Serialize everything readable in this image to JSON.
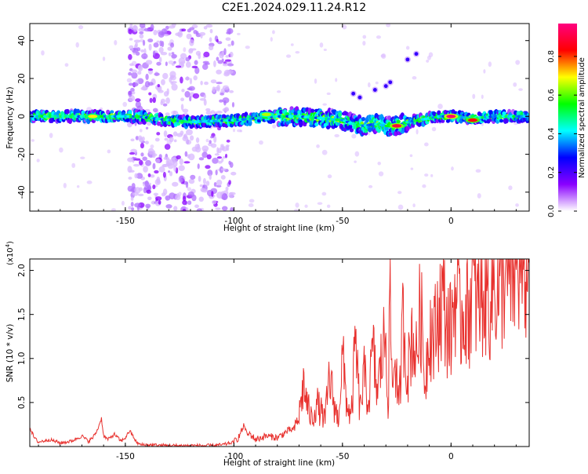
{
  "page_title": "C2E1.2024.029.11.24.R12",
  "chart_data": [
    {
      "type": "heatmap",
      "title": "C2E1.2024.029.11.24.R12",
      "xlabel": "Height of straight line (km)",
      "ylabel": "Frequency (Hz)",
      "xlim": [
        -194,
        36
      ],
      "ylim": [
        -50,
        49
      ],
      "xticks": [
        -150,
        -100,
        -50,
        0
      ],
      "xtick_labels": [
        "-150",
        "-100",
        "-50",
        "0"
      ],
      "yticks": [
        -40,
        -20,
        0,
        20,
        40
      ],
      "ytick_labels": [
        "-40",
        "-20",
        "0",
        "20",
        "40"
      ],
      "grid": false,
      "colorbar": {
        "label": "Normalized spectral amplitude",
        "range": [
          0,
          0.97
        ],
        "ticks": [
          0,
          0.2,
          0.4,
          0.6,
          0.8
        ],
        "tick_labels": [
          "0.0",
          "0.2",
          "0.4",
          "0.6",
          "0.8"
        ],
        "colors": [
          "#ffffff",
          "#8a00ff",
          "#0000ff",
          "#00ffff",
          "#00ff00",
          "#ffff00",
          "#ff0000",
          "#ff0080"
        ]
      },
      "ridge": {
        "x": [
          -194,
          -170,
          -155,
          -150,
          -145,
          -130,
          -120,
          -100,
          -80,
          -70,
          -60,
          -50,
          -45,
          -40,
          -35,
          -30,
          -25,
          -20,
          -15,
          -10,
          -5,
          0,
          10,
          20,
          36
        ],
        "y": [
          0,
          0,
          0,
          0,
          0,
          -2,
          -3,
          -2,
          0,
          0,
          -1,
          -2,
          -4,
          -5,
          -4,
          -5,
          -5,
          -3,
          -2,
          -1,
          0,
          0,
          -1,
          0,
          0
        ]
      },
      "hot_spots": [
        {
          "x": -165,
          "y": 0,
          "v": 0.7
        },
        {
          "x": -85,
          "y": 1,
          "v": 0.65
        },
        {
          "x": -25,
          "y": -5,
          "v": 0.9
        },
        {
          "x": 0,
          "y": 0,
          "v": 0.95
        },
        {
          "x": 10,
          "y": -2,
          "v": 0.85
        }
      ],
      "branch_points": [
        {
          "x": -45,
          "y": 12
        },
        {
          "x": -42,
          "y": 10
        },
        {
          "x": -35,
          "y": 14
        },
        {
          "x": -30,
          "y": 16
        },
        {
          "x": -28,
          "y": 18
        },
        {
          "x": -20,
          "y": 30
        },
        {
          "x": -16,
          "y": 33
        }
      ],
      "noise_band_x": [
        -148,
        -100
      ],
      "colors": {
        "noise_light": "#d8b8ff",
        "noise_mid": "#b070ff",
        "noise_dark": "#8a00ff"
      }
    },
    {
      "type": "line",
      "xlabel": "Height of straight line (km)",
      "ylabel": "SNR (10 * v/v)",
      "y_multiplier_label": "(x10",
      "y_multiplier_exponent": "4",
      "y_multiplier_close": ")",
      "xlim": [
        -194,
        36
      ],
      "ylim": [
        0,
        2.13
      ],
      "xticks": [
        -150,
        -100,
        -50,
        0
      ],
      "xtick_labels": [
        "-150",
        "-100",
        "-50",
        "0"
      ],
      "yticks": [
        0.5,
        1.0,
        1.5,
        2.0
      ],
      "ytick_labels": [
        "0.5",
        "1.0",
        "1.5",
        "2.0"
      ],
      "grid": false,
      "color": "#e8322f",
      "series": [
        {
          "x": [
            -194,
            -192,
            -190,
            -185,
            -180,
            -175,
            -170,
            -167,
            -165,
            -163,
            -161,
            -160,
            -158,
            -155,
            -152,
            -150,
            -148,
            -146,
            -145,
            -143,
            -140,
            -130,
            -120,
            -110,
            -105,
            -100,
            -98,
            -96,
            -95,
            -94,
            -93,
            -90,
            -85,
            -80,
            -75,
            -72,
            -70,
            -68,
            -66,
            -64,
            -62,
            -60,
            -58,
            -56,
            -54,
            -52,
            -50,
            -48,
            -46,
            -44,
            -42,
            -40,
            -38,
            -36,
            -34,
            -32,
            -30,
            -29,
            -28,
            -27,
            -26,
            -24,
            -22,
            -20,
            -18,
            -16,
            -14,
            -12,
            -10,
            -8,
            -6,
            -4,
            -2,
            0,
            2,
            4,
            6,
            8,
            10,
            12,
            14,
            16,
            18,
            20,
            22,
            24,
            26,
            28,
            30,
            32,
            34,
            36
          ],
          "y": [
            0.22,
            0.1,
            0.05,
            0.08,
            0.04,
            0.06,
            0.12,
            0.06,
            0.1,
            0.18,
            0.32,
            0.12,
            0.08,
            0.14,
            0.06,
            0.1,
            0.18,
            0.1,
            0.05,
            0.02,
            0.02,
            0.01,
            0.01,
            0.01,
            0.02,
            0.05,
            0.1,
            0.2,
            0.25,
            0.12,
            0.15,
            0.08,
            0.12,
            0.1,
            0.18,
            0.2,
            0.35,
            0.7,
            0.45,
            0.3,
            0.5,
            0.4,
            0.3,
            0.8,
            0.5,
            0.3,
            1.0,
            0.5,
            0.3,
            1.2,
            0.4,
            0.8,
            0.5,
            1.1,
            0.6,
            1.0,
            1.3,
            0.5,
            1.7,
            0.6,
            1.1,
            0.4,
            1.5,
            0.8,
            1.3,
            1.0,
            1.6,
            0.7,
            1.4,
            1.2,
            1.5,
            1.7,
            1.4,
            1.3,
            1.8,
            1.4,
            1.6,
            1.5,
            1.9,
            1.6,
            1.7,
            1.8,
            1.65,
            1.9,
            1.7,
            1.95,
            2.0,
            1.9,
            2.05,
            2.1,
            2.0,
            2.12
          ]
        }
      ]
    }
  ]
}
